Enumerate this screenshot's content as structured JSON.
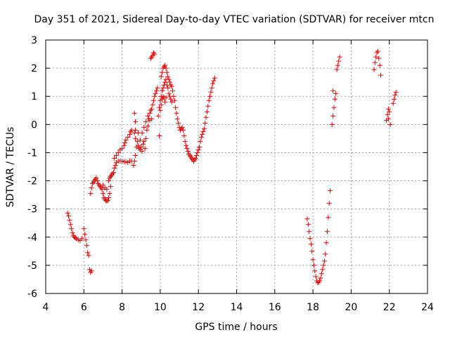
{
  "chart_data": {
    "type": "scatter",
    "title": "Day 351 of 2021, Sidereal Day-to-day VTEC variation (SDTVAR) for receiver mtcn",
    "xlabel": "GPS time / hours",
    "ylabel": "SDTVAR / TECUs",
    "xlim": [
      4,
      24
    ],
    "ylim": [
      -6,
      3
    ],
    "x_ticks": [
      "4",
      "6",
      "8",
      "10",
      "12",
      "14",
      "16",
      "18",
      "20",
      "22",
      "24"
    ],
    "y_ticks": [
      "-6",
      "-5",
      "-4",
      "-3",
      "-2",
      "-1",
      "0",
      "1",
      "2",
      "3"
    ],
    "grid": true,
    "marker": "+",
    "color": "#e00000",
    "series": [
      {
        "name": "SDTVAR",
        "points": [
          [
            5.15,
            -3.15
          ],
          [
            5.2,
            -3.25
          ],
          [
            5.25,
            -3.4
          ],
          [
            5.3,
            -3.55
          ],
          [
            5.35,
            -3.7
          ],
          [
            5.4,
            -3.85
          ],
          [
            5.45,
            -3.95
          ],
          [
            5.5,
            -4.0
          ],
          [
            5.55,
            -4.02
          ],
          [
            5.6,
            -4.05
          ],
          [
            5.7,
            -4.1
          ],
          [
            5.8,
            -4.12
          ],
          [
            5.9,
            -4.05
          ],
          [
            6.0,
            -3.7
          ],
          [
            6.05,
            -3.9
          ],
          [
            6.1,
            -4.1
          ],
          [
            6.15,
            -4.3
          ],
          [
            6.2,
            -4.55
          ],
          [
            6.25,
            -4.65
          ],
          [
            6.3,
            -5.15
          ],
          [
            6.35,
            -5.25
          ],
          [
            6.4,
            -5.2
          ],
          [
            6.35,
            -2.45
          ],
          [
            6.4,
            -2.25
          ],
          [
            6.45,
            -2.1
          ],
          [
            6.5,
            -2.05
          ],
          [
            6.55,
            -2.0
          ],
          [
            6.6,
            -1.95
          ],
          [
            6.65,
            -1.9
          ],
          [
            6.7,
            -2.0
          ],
          [
            6.75,
            -2.1
          ],
          [
            6.8,
            -2.15
          ],
          [
            6.85,
            -2.2
          ],
          [
            6.9,
            -2.25
          ],
          [
            6.95,
            -2.3
          ],
          [
            7.0,
            -2.45
          ],
          [
            7.05,
            -2.6
          ],
          [
            7.1,
            -2.65
          ],
          [
            7.15,
            -2.7
          ],
          [
            7.2,
            -2.72
          ],
          [
            7.25,
            -2.7
          ],
          [
            7.3,
            -2.6
          ],
          [
            7.35,
            -2.45
          ],
          [
            7.4,
            -2.2
          ],
          [
            7.0,
            -2.15
          ],
          [
            7.1,
            -2.25
          ],
          [
            7.2,
            -2.3
          ],
          [
            7.3,
            -2.0
          ],
          [
            7.35,
            -1.9
          ],
          [
            7.4,
            -1.85
          ],
          [
            7.45,
            -1.8
          ],
          [
            7.5,
            -1.75
          ],
          [
            7.55,
            -1.7
          ],
          [
            7.6,
            -1.55
          ],
          [
            7.65,
            -1.45
          ],
          [
            7.7,
            -1.35
          ],
          [
            7.8,
            -1.3
          ],
          [
            7.9,
            -1.3
          ],
          [
            8.0,
            -1.3
          ],
          [
            8.1,
            -1.32
          ],
          [
            8.2,
            -1.33
          ],
          [
            8.3,
            -1.35
          ],
          [
            8.4,
            -1.3
          ],
          [
            8.5,
            -1.3
          ],
          [
            7.6,
            -1.2
          ],
          [
            7.7,
            -1.1
          ],
          [
            7.8,
            -1.0
          ],
          [
            7.9,
            -0.9
          ],
          [
            8.0,
            -0.85
          ],
          [
            8.1,
            -0.75
          ],
          [
            8.15,
            -0.65
          ],
          [
            8.2,
            -0.55
          ],
          [
            8.3,
            -0.45
          ],
          [
            8.4,
            -0.35
          ],
          [
            8.45,
            -0.25
          ],
          [
            8.5,
            -0.2
          ],
          [
            8.6,
            -1.45
          ],
          [
            8.65,
            -1.3
          ],
          [
            8.7,
            -1.1
          ],
          [
            8.75,
            -0.8
          ],
          [
            8.7,
            -0.5
          ],
          [
            8.65,
            -0.3
          ],
          [
            8.7,
            0.1
          ],
          [
            8.65,
            0.4
          ],
          [
            8.7,
            -0.2
          ],
          [
            8.8,
            -0.6
          ],
          [
            8.85,
            -0.75
          ],
          [
            8.9,
            -0.85
          ],
          [
            8.95,
            -0.9
          ],
          [
            9.0,
            -0.8
          ],
          [
            9.05,
            -0.95
          ],
          [
            9.1,
            -0.7
          ],
          [
            9.15,
            -0.6
          ],
          [
            9.2,
            -0.85
          ],
          [
            9.25,
            -0.5
          ],
          [
            9.3,
            -0.2
          ],
          [
            9.35,
            -0.05
          ],
          [
            9.4,
            0.2
          ],
          [
            9.45,
            0.4
          ],
          [
            9.5,
            0.5
          ],
          [
            9.55,
            0.55
          ],
          [
            9.6,
            0.7
          ],
          [
            9.65,
            0.85
          ],
          [
            9.7,
            1.0
          ],
          [
            9.75,
            1.1
          ],
          [
            9.8,
            1.2
          ],
          [
            9.85,
            1.3
          ],
          [
            8.85,
            -0.3
          ],
          [
            8.95,
            -0.55
          ],
          [
            9.05,
            -0.3
          ],
          [
            9.15,
            -0.1
          ],
          [
            9.25,
            0.1
          ],
          [
            9.35,
            0.3
          ],
          [
            9.45,
            0.15
          ],
          [
            9.55,
            0.2
          ],
          [
            9.5,
            2.35
          ],
          [
            9.55,
            2.4
          ],
          [
            9.6,
            2.45
          ],
          [
            9.65,
            2.55
          ],
          [
            9.7,
            2.5
          ],
          [
            9.9,
            0.3
          ],
          [
            9.95,
            0.6
          ],
          [
            10.0,
            0.85
          ],
          [
            10.05,
            1.0
          ],
          [
            10.1,
            1.2
          ],
          [
            10.15,
            1.3
          ],
          [
            10.2,
            1.4
          ],
          [
            10.25,
            1.5
          ],
          [
            10.3,
            1.6
          ],
          [
            10.35,
            1.4
          ],
          [
            10.4,
            1.3
          ],
          [
            10.45,
            1.1
          ],
          [
            10.5,
            1.0
          ],
          [
            10.55,
            0.9
          ],
          [
            10.6,
            0.8
          ],
          [
            9.95,
            -0.4
          ],
          [
            10.0,
            0.5
          ],
          [
            10.05,
            0.7
          ],
          [
            10.1,
            0.9
          ],
          [
            10.15,
            1.0
          ],
          [
            10.2,
            0.95
          ],
          [
            10.25,
            0.8
          ],
          [
            10.3,
            0.95
          ],
          [
            10.05,
            1.7
          ],
          [
            10.1,
            1.85
          ],
          [
            10.15,
            2.0
          ],
          [
            10.2,
            2.05
          ],
          [
            10.25,
            2.1
          ],
          [
            10.3,
            2.0
          ],
          [
            10.35,
            1.85
          ],
          [
            10.4,
            1.7
          ],
          [
            10.45,
            1.6
          ],
          [
            10.5,
            1.5
          ],
          [
            10.55,
            1.4
          ],
          [
            10.6,
            1.35
          ],
          [
            10.65,
            1.2
          ],
          [
            10.7,
            1.0
          ],
          [
            10.75,
            0.85
          ],
          [
            10.8,
            0.6
          ],
          [
            10.85,
            0.4
          ],
          [
            10.9,
            0.2
          ],
          [
            10.95,
            0.05
          ],
          [
            11.0,
            -0.1
          ],
          [
            11.05,
            -0.2
          ],
          [
            11.1,
            -0.15
          ],
          [
            11.15,
            -0.1
          ],
          [
            11.2,
            -0.2
          ],
          [
            11.25,
            -0.4
          ],
          [
            11.3,
            -0.6
          ],
          [
            11.35,
            -0.75
          ],
          [
            11.4,
            -0.85
          ],
          [
            11.45,
            -0.95
          ],
          [
            11.5,
            -1.05
          ],
          [
            11.55,
            -1.1
          ],
          [
            11.6,
            -1.15
          ],
          [
            11.65,
            -1.2
          ],
          [
            11.7,
            -1.25
          ],
          [
            11.75,
            -1.3
          ],
          [
            11.8,
            -1.25
          ],
          [
            11.85,
            -1.2
          ],
          [
            11.9,
            -1.1
          ],
          [
            11.95,
            -1.0
          ],
          [
            12.0,
            -0.9
          ],
          [
            12.05,
            -0.8
          ],
          [
            12.1,
            -0.6
          ],
          [
            12.15,
            -0.45
          ],
          [
            12.2,
            -0.35
          ],
          [
            12.25,
            -0.25
          ],
          [
            12.3,
            -0.15
          ],
          [
            12.35,
            0.05
          ],
          [
            12.4,
            0.25
          ],
          [
            12.45,
            0.45
          ],
          [
            12.5,
            0.65
          ],
          [
            12.55,
            0.85
          ],
          [
            12.6,
            1.0
          ],
          [
            12.65,
            1.15
          ],
          [
            12.7,
            1.3
          ],
          [
            12.75,
            1.45
          ],
          [
            12.8,
            1.55
          ],
          [
            12.85,
            1.65
          ],
          [
            17.7,
            -3.35
          ],
          [
            17.75,
            -3.55
          ],
          [
            17.8,
            -3.8
          ],
          [
            17.85,
            -4.05
          ],
          [
            17.9,
            -4.25
          ],
          [
            17.95,
            -4.5
          ],
          [
            18.0,
            -4.8
          ],
          [
            18.05,
            -5.0
          ],
          [
            18.1,
            -5.2
          ],
          [
            18.15,
            -5.4
          ],
          [
            18.2,
            -5.55
          ],
          [
            18.25,
            -5.62
          ],
          [
            18.3,
            -5.6
          ],
          [
            18.35,
            -5.55
          ],
          [
            18.4,
            -5.45
          ],
          [
            18.45,
            -5.3
          ],
          [
            18.5,
            -5.15
          ],
          [
            18.55,
            -5.0
          ],
          [
            18.6,
            -4.85
          ],
          [
            18.65,
            -4.6
          ],
          [
            18.7,
            -4.2
          ],
          [
            18.75,
            -3.8
          ],
          [
            18.8,
            -3.3
          ],
          [
            18.85,
            -2.8
          ],
          [
            18.9,
            -2.35
          ],
          [
            19.0,
            0.0
          ],
          [
            19.05,
            0.3
          ],
          [
            19.1,
            0.6
          ],
          [
            19.15,
            0.9
          ],
          [
            19.2,
            1.1
          ],
          [
            19.05,
            1.2
          ],
          [
            19.25,
            1.95
          ],
          [
            19.3,
            2.1
          ],
          [
            19.35,
            2.25
          ],
          [
            19.4,
            2.4
          ],
          [
            21.2,
            1.95
          ],
          [
            21.25,
            2.2
          ],
          [
            21.3,
            2.4
          ],
          [
            21.35,
            2.55
          ],
          [
            21.4,
            2.6
          ],
          [
            21.45,
            2.35
          ],
          [
            21.5,
            2.1
          ],
          [
            21.55,
            1.75
          ],
          [
            21.85,
            0.15
          ],
          [
            21.9,
            0.35
          ],
          [
            21.95,
            0.55
          ],
          [
            22.0,
            0.45
          ],
          [
            22.05,
            0.0
          ],
          [
            21.95,
            0.2
          ],
          [
            22.2,
            0.75
          ],
          [
            22.25,
            0.9
          ],
          [
            22.3,
            1.05
          ],
          [
            22.35,
            1.15
          ]
        ]
      }
    ]
  }
}
